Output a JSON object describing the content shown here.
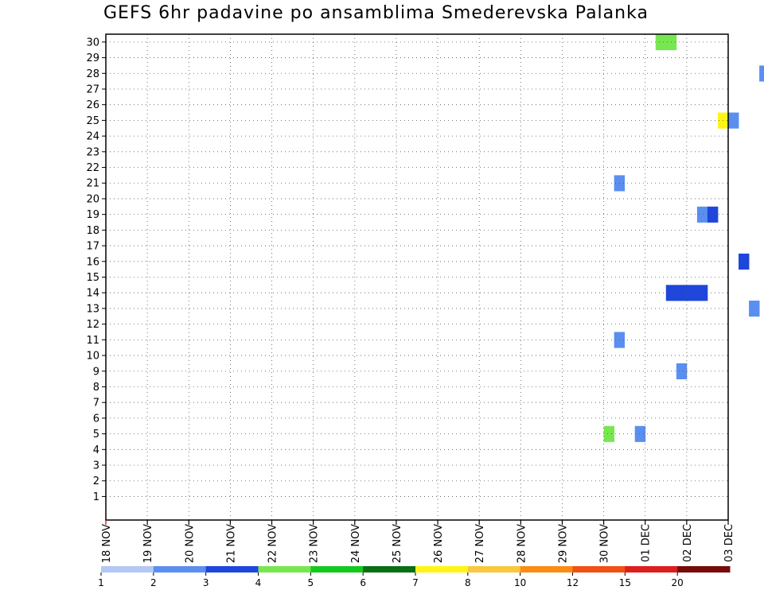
{
  "title": "GEFS 6hr padavine po ansamblima Smederevska Palanka",
  "chart_data": {
    "type": "heatmap",
    "title": "GEFS 6hr padavine po ansamblima Smederevska Palanka",
    "x_tick_labels": [
      "18 NOV",
      "19 NOV",
      "20 NOV",
      "21 NOV",
      "22 NOV",
      "23 NOV",
      "24 NOV",
      "25 NOV",
      "26 NOV",
      "27 NOV",
      "28 NOV",
      "29 NOV",
      "30 NOV",
      "01 DEC",
      "02 DEC",
      "03 DEC"
    ],
    "y_tick_labels": [
      "1",
      "2",
      "3",
      "4",
      "5",
      "6",
      "7",
      "8",
      "9",
      "10",
      "11",
      "12",
      "13",
      "14",
      "15",
      "16",
      "17",
      "18",
      "19",
      "20",
      "21",
      "22",
      "23",
      "24",
      "25",
      "26",
      "27",
      "28",
      "29",
      "30"
    ],
    "x_steps_per_day": 4,
    "ylim": [
      0,
      30
    ],
    "grid": true,
    "legend": {
      "position": "bottom",
      "labels": [
        "1",
        "2",
        "3",
        "4",
        "5",
        "6",
        "7",
        "8",
        "10",
        "12",
        "15",
        "20"
      ],
      "colors": [
        "#b4c8f5",
        "#5a8ff0",
        "#1e46dc",
        "#78e650",
        "#14c81e",
        "#0a6e14",
        "#fff514",
        "#fac83c",
        "#fa8c14",
        "#f05014",
        "#dc1e1e",
        "#780a0a"
      ]
    },
    "cells": [
      [
        30,
        53,
        3
      ],
      [
        30,
        54,
        3
      ],
      [
        30,
        77,
        11
      ],
      [
        30,
        78,
        1
      ],
      [
        30,
        79,
        1
      ],
      [
        30,
        81,
        1
      ],
      [
        30,
        87,
        3
      ],
      [
        30,
        88,
        5
      ],
      [
        30,
        90,
        11
      ],
      [
        30,
        91,
        2
      ],
      [
        29,
        95,
        2
      ],
      [
        29,
        89,
        11
      ],
      [
        29,
        133,
        2
      ],
      [
        29,
        137,
        2
      ],
      [
        28,
        63,
        1
      ],
      [
        28,
        82,
        1
      ],
      [
        28,
        83,
        1
      ],
      [
        28,
        84,
        1
      ],
      [
        28,
        85,
        1
      ],
      [
        28,
        86,
        11
      ],
      [
        28,
        87,
        15
      ],
      [
        28,
        88,
        1
      ],
      [
        28,
        89,
        2
      ],
      [
        28,
        90,
        1
      ],
      [
        28,
        94,
        2
      ],
      [
        28,
        95,
        4
      ],
      [
        27,
        78,
        3
      ],
      [
        27,
        79,
        1
      ],
      [
        27,
        94,
        2
      ],
      [
        27,
        149,
        1
      ],
      [
        27,
        150,
        1
      ],
      [
        26,
        89,
        1
      ],
      [
        26,
        90,
        4
      ],
      [
        26,
        91,
        2
      ],
      [
        26,
        92,
        1
      ],
      [
        26,
        94,
        3
      ],
      [
        26,
        128,
        1
      ],
      [
        26,
        129,
        1
      ],
      [
        26,
        132,
        1
      ],
      [
        26,
        133,
        1
      ],
      [
        25,
        59,
        6
      ],
      [
        25,
        60,
        1
      ],
      [
        25,
        80,
        5
      ],
      [
        25,
        81,
        1
      ],
      [
        25,
        94,
        1
      ],
      [
        25,
        100,
        2
      ],
      [
        25,
        101,
        6
      ],
      [
        25,
        102,
        3
      ],
      [
        25,
        104,
        4
      ],
      [
        24,
        80,
        1
      ],
      [
        24,
        82,
        15
      ],
      [
        24,
        93,
        7
      ],
      [
        23,
        74,
        1
      ],
      [
        23,
        75,
        1
      ],
      [
        23,
        76,
        1
      ],
      [
        23,
        101,
        3
      ],
      [
        23,
        102,
        2
      ],
      [
        23,
        103,
        4
      ],
      [
        22,
        79,
        15
      ],
      [
        22,
        80,
        7
      ],
      [
        22,
        82,
        2
      ],
      [
        22,
        83,
        7
      ],
      [
        22,
        84,
        1
      ],
      [
        21,
        49,
        1
      ],
      [
        21,
        80,
        11
      ],
      [
        21,
        84,
        5
      ],
      [
        21,
        86,
        1
      ],
      [
        21,
        106,
        3
      ],
      [
        21,
        109,
        6
      ],
      [
        21,
        110,
        10
      ],
      [
        21,
        111,
        1
      ],
      [
        20,
        82,
        10
      ],
      [
        20,
        83,
        3
      ],
      [
        20,
        86,
        1
      ],
      [
        20,
        87,
        1
      ],
      [
        20,
        92,
        1
      ],
      [
        20,
        93,
        5
      ],
      [
        20,
        94,
        1
      ],
      [
        20,
        108,
        5
      ],
      [
        20,
        109,
        2
      ],
      [
        20,
        110,
        2
      ],
      [
        20,
        111,
        1
      ],
      [
        19,
        57,
        1
      ],
      [
        19,
        58,
        2
      ],
      [
        19,
        77,
        2
      ],
      [
        19,
        86,
        1
      ],
      [
        19,
        87,
        1
      ],
      [
        19,
        92,
        2
      ],
      [
        19,
        93,
        5
      ],
      [
        19,
        94,
        1
      ],
      [
        19,
        108,
        3
      ],
      [
        19,
        109,
        2
      ],
      [
        19,
        110,
        4
      ],
      [
        19,
        111,
        2
      ],
      [
        18,
        75,
        2
      ],
      [
        18,
        97,
        1
      ],
      [
        18,
        108,
        1
      ],
      [
        18,
        109,
        2
      ],
      [
        18,
        110,
        4
      ],
      [
        18,
        111,
        3
      ],
      [
        17,
        85,
        3
      ],
      [
        17,
        86,
        6
      ],
      [
        17,
        87,
        1
      ],
      [
        17,
        91,
        1
      ],
      [
        17,
        111,
        3
      ],
      [
        16,
        61,
        2
      ],
      [
        16,
        80,
        2
      ],
      [
        16,
        81,
        4
      ],
      [
        16,
        83,
        2
      ],
      [
        16,
        95,
        4
      ],
      [
        16,
        102,
        1
      ],
      [
        15,
        80,
        5
      ],
      [
        15,
        82,
        1
      ],
      [
        15,
        89,
        4
      ],
      [
        15,
        102,
        1
      ],
      [
        14,
        54,
        2
      ],
      [
        14,
        55,
        2
      ],
      [
        14,
        56,
        2
      ],
      [
        14,
        57,
        2
      ],
      [
        14,
        78,
        2
      ],
      [
        14,
        79,
        3
      ],
      [
        14,
        82,
        3
      ],
      [
        14,
        84,
        1
      ],
      [
        14,
        86,
        20
      ],
      [
        14,
        87,
        15
      ],
      [
        14,
        88,
        2
      ],
      [
        14,
        102,
        5
      ],
      [
        14,
        107,
        3
      ],
      [
        14,
        108,
        4
      ],
      [
        13,
        62,
        1
      ],
      [
        13,
        80,
        10
      ],
      [
        13,
        83,
        1
      ],
      [
        13,
        88,
        1
      ],
      [
        13,
        89,
        2
      ],
      [
        13,
        90,
        1
      ],
      [
        13,
        91,
        1
      ],
      [
        13,
        92,
        1
      ],
      [
        13,
        93,
        1
      ],
      [
        13,
        111,
        11
      ],
      [
        12,
        67,
        3
      ],
      [
        12,
        70,
        10
      ],
      [
        12,
        84,
        1
      ],
      [
        12,
        92,
        1
      ],
      [
        12,
        93,
        10
      ],
      [
        12,
        94,
        1
      ],
      [
        12,
        99,
        15
      ],
      [
        12,
        100,
        4
      ],
      [
        11,
        49,
        1
      ],
      [
        11,
        79,
        1
      ],
      [
        11,
        80,
        11
      ],
      [
        11,
        81,
        8
      ],
      [
        11,
        82,
        7
      ],
      [
        11,
        83,
        6
      ],
      [
        11,
        84,
        11
      ],
      [
        11,
        97,
        3
      ],
      [
        11,
        98,
        3
      ],
      [
        11,
        106,
        1
      ],
      [
        11,
        107,
        2
      ],
      [
        11,
        108,
        1
      ],
      [
        11,
        109,
        3
      ],
      [
        11,
        110,
        5
      ],
      [
        11,
        111,
        7
      ],
      [
        11,
        112,
        5
      ],
      [
        11,
        113,
        5
      ],
      [
        11,
        114,
        1
      ],
      [
        10,
        80,
        2
      ],
      [
        10,
        84,
        1
      ],
      [
        9,
        55,
        1
      ],
      [
        9,
        88,
        1
      ],
      [
        9,
        98,
        1
      ],
      [
        8,
        80,
        11
      ],
      [
        8,
        84,
        6
      ],
      [
        8,
        93,
        15
      ],
      [
        8,
        95,
        11
      ],
      [
        8,
        96,
        4
      ],
      [
        8,
        98,
        1
      ],
      [
        8,
        99,
        3
      ],
      [
        8,
        100,
        2
      ],
      [
        8,
        109,
        2
      ],
      [
        7,
        84,
        6
      ],
      [
        7,
        93,
        5
      ],
      [
        7,
        94,
        1
      ],
      [
        7,
        96,
        6
      ],
      [
        7,
        98,
        1
      ],
      [
        7,
        99,
        3
      ],
      [
        7,
        100,
        7
      ],
      [
        7,
        101,
        4
      ],
      [
        6,
        80,
        3
      ],
      [
        6,
        81,
        3
      ],
      [
        6,
        97,
        1
      ],
      [
        6,
        98,
        2
      ],
      [
        6,
        99,
        2
      ],
      [
        6,
        100,
        2
      ],
      [
        6,
        110,
        2
      ],
      [
        6,
        111,
        2
      ],
      [
        6,
        112,
        1
      ],
      [
        6,
        113,
        2
      ],
      [
        6,
        114,
        3
      ],
      [
        5,
        48,
        3
      ],
      [
        5,
        51,
        1
      ],
      [
        5,
        97,
        1
      ],
      [
        5,
        98,
        1
      ],
      [
        5,
        114,
        3
      ],
      [
        4,
        81,
        6
      ],
      [
        4,
        82,
        4
      ],
      [
        4,
        84,
        1
      ],
      [
        4,
        85,
        3
      ],
      [
        4,
        86,
        1
      ],
      [
        4,
        100,
        1
      ],
      [
        4,
        101,
        10
      ],
      [
        4,
        109,
        2
      ],
      [
        3,
        78,
        3
      ],
      [
        3,
        79,
        6
      ],
      [
        3,
        80,
        6
      ],
      [
        3,
        81,
        4
      ],
      [
        3,
        82,
        1
      ],
      [
        3,
        91,
        1
      ],
      [
        3,
        92,
        2
      ],
      [
        3,
        97,
        1
      ],
      [
        3,
        98,
        3
      ],
      [
        3,
        110,
        3
      ],
      [
        3,
        111,
        3
      ],
      [
        2,
        80,
        2
      ],
      [
        2,
        81,
        2
      ],
      [
        2,
        83,
        4
      ],
      [
        2,
        92,
        10
      ],
      [
        2,
        93,
        1
      ],
      [
        2,
        99,
        1
      ],
      [
        2,
        100,
        4
      ],
      [
        2,
        101,
        1
      ],
      [
        1,
        74,
        3
      ],
      [
        1,
        75,
        5
      ],
      [
        1,
        91,
        1
      ],
      [
        1,
        92,
        5
      ],
      [
        1,
        93,
        4
      ],
      [
        1,
        94,
        5
      ],
      [
        1,
        95,
        5
      ],
      [
        1,
        96,
        5
      ],
      [
        1,
        114,
        1
      ],
      [
        0,
        76,
        4
      ],
      [
        0,
        84,
        2
      ],
      [
        0,
        85,
        1
      ],
      [
        0,
        94,
        4
      ],
      [
        0,
        95,
        1
      ],
      [
        0,
        96,
        1
      ],
      [
        0,
        97,
        1
      ],
      [
        0,
        98,
        1
      ],
      [
        0,
        106,
        4
      ],
      [
        0,
        107,
        1
      ],
      [
        0,
        108,
        1
      ]
    ]
  }
}
